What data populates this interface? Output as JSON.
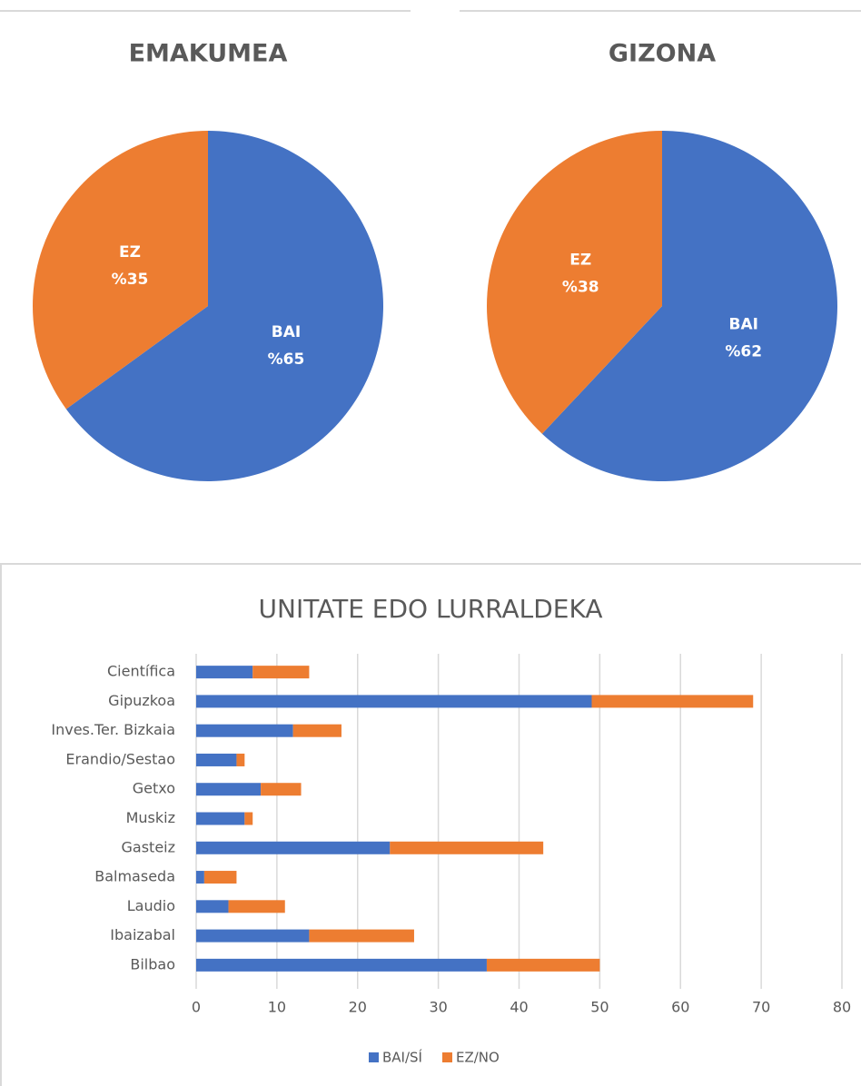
{
  "chart_data": [
    {
      "type": "pie",
      "title": "EMAKUMEA",
      "categories": [
        "BAI",
        "EZ"
      ],
      "values": [
        65,
        35
      ],
      "value_labels": [
        "%65",
        "%35"
      ],
      "colors": [
        "#4472c4",
        "#ed7d31"
      ]
    },
    {
      "type": "pie",
      "title": "GIZONA",
      "categories": [
        "BAI",
        "EZ"
      ],
      "values": [
        62,
        38
      ],
      "value_labels": [
        "%62",
        "%38"
      ],
      "colors": [
        "#4472c4",
        "#ed7d31"
      ]
    },
    {
      "type": "bar",
      "orientation": "horizontal",
      "stacked": true,
      "title": "UNITATE EDO LURRALDEKA",
      "categories": [
        "Científica",
        "Gipuzkoa",
        "Inves.Ter. Bizkaia",
        "Erandio/Sestao",
        "Getxo",
        "Muskiz",
        "Gasteiz",
        "Balmaseda",
        "Laudio",
        "Ibaizabal",
        "Bilbao"
      ],
      "series": [
        {
          "name": "BAI/SÍ",
          "color": "#4472c4",
          "values": [
            7,
            49,
            12,
            5,
            8,
            6,
            24,
            1,
            4,
            14,
            36
          ]
        },
        {
          "name": "EZ/NO",
          "color": "#ed7d31",
          "values": [
            7,
            20,
            6,
            1,
            5,
            1,
            19,
            4,
            7,
            13,
            14
          ]
        }
      ],
      "xlim": [
        0,
        80
      ],
      "xticks": [
        0,
        10,
        20,
        30,
        40,
        50,
        60,
        70,
        80
      ],
      "grid": true,
      "legend": "bottom"
    }
  ]
}
